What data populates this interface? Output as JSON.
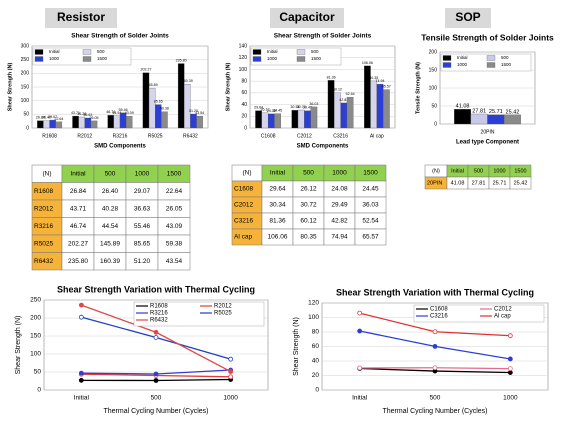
{
  "headers": [
    "Resistor",
    "Capacitor",
    "SOP"
  ],
  "chart_data": [
    {
      "type": "bar",
      "title": "Shear Strength of Solder Joints",
      "ylabel": "Shear Strength (N)",
      "xlabel": "SMD Components",
      "categories": [
        "R1608",
        "R2012",
        "R3216",
        "R5025",
        "R6432"
      ],
      "series": [
        {
          "name": "Initial",
          "color": "#000000",
          "values": [
            26.84,
            43.71,
            46.74,
            202.27,
            235.8
          ],
          "value_labels": [
            "26.84",
            "43.71",
            "46.74",
            "202.27",
            "235.80"
          ]
        },
        {
          "name": "500",
          "color": "#d4d4ec",
          "values": [
            26.4,
            40.28,
            44.54,
            145.89,
            160.39
          ],
          "value_labels": [
            "26.40",
            "40.28",
            "44.54",
            "145.89",
            "160.39"
          ]
        },
        {
          "name": "1000",
          "color": "#2b3fd6",
          "values": [
            29.07,
            36.63,
            55.46,
            85.65,
            51.2
          ],
          "value_labels": [
            "29.07",
            "36.63",
            "55.46",
            "85.65",
            "51.20"
          ]
        },
        {
          "name": "1500",
          "color": "#8a8a8a",
          "values": [
            22.64,
            26.05,
            43.09,
            59.38,
            43.54
          ],
          "value_labels": [
            "22.64",
            "26.05",
            "43.09",
            "59.38",
            "43.54"
          ]
        }
      ],
      "ylim": [
        0,
        300
      ],
      "yticks": [
        0,
        50,
        100,
        150,
        200,
        250,
        300
      ],
      "grid": true,
      "legend": "upper left"
    },
    {
      "type": "bar",
      "title": "Shear Strength of Solder Joints",
      "ylabel": "Shear Strength (N)",
      "xlabel": "SMD Components",
      "categories": [
        "C1608",
        "C2012",
        "C3216",
        "Al cap"
      ],
      "series": [
        {
          "name": "Initial",
          "color": "#000000",
          "values": [
            29.64,
            30.34,
            81.36,
            106.06
          ],
          "value_labels": [
            "29.64",
            "30.34",
            "81.36",
            "106.06"
          ]
        },
        {
          "name": "500",
          "color": "#d4d4ec",
          "values": [
            26.12,
            30.72,
            60.12,
            80.35
          ],
          "value_labels": [
            "26.12",
            "30.72",
            "60.12",
            "80.35"
          ]
        },
        {
          "name": "1000",
          "color": "#2b3fd6",
          "values": [
            24.08,
            29.49,
            42.82,
            74.94
          ],
          "value_labels": [
            "24.08",
            "29.49",
            "42.82",
            "74.94"
          ]
        },
        {
          "name": "1500",
          "color": "#8a8a8a",
          "values": [
            24.45,
            36.03,
            52.54,
            65.57
          ],
          "value_labels": [
            "24.45",
            "36.03",
            "52.54",
            "65.57"
          ]
        }
      ],
      "ylim": [
        0,
        140
      ],
      "yticks": [
        0,
        20,
        40,
        60,
        80,
        100,
        120,
        140
      ],
      "grid": true,
      "legend": "upper left"
    },
    {
      "type": "bar",
      "title": "Tensile Strength of Solder Joints",
      "ylabel": "Tensile Strength (N)",
      "xlabel": "Lead type Component",
      "categories": [
        "20PIN"
      ],
      "series": [
        {
          "name": "Initial",
          "color": "#000000",
          "values": [
            41.08
          ]
        },
        {
          "name": "500",
          "color": "#c8c8ea",
          "values": [
            27.81
          ]
        },
        {
          "name": "1000",
          "color": "#2b3fd6",
          "values": [
            25.71
          ]
        },
        {
          "name": "1500",
          "color": "#8a8a8a",
          "values": [
            25.42
          ]
        }
      ],
      "ylim": [
        0,
        200
      ],
      "yticks": [
        0,
        50,
        100,
        150,
        200
      ],
      "grid": true,
      "legend": "upper left"
    },
    {
      "type": "line",
      "title": "Shear Strength Variation with Thermal Cycling",
      "ylabel": "Shear Strength (N)",
      "xlabel": "Thermal Cycling Number (Cycles)",
      "categories": [
        "Initial",
        "500",
        "1000"
      ],
      "series": [
        {
          "name": "R1608",
          "color": "#000000",
          "values": [
            26.84,
            26.4,
            29.07
          ]
        },
        {
          "name": "R2012",
          "color": "#e03c3c",
          "values": [
            43.71,
            40.28,
            36.63
          ]
        },
        {
          "name": "R3216",
          "color": "#3a3ad0",
          "values": [
            46.74,
            44.54,
            55.46
          ]
        },
        {
          "name": "R5025",
          "color": "#2040c0",
          "values": [
            202.27,
            145.89,
            85.65
          ]
        },
        {
          "name": "R6432",
          "color": "#e04848",
          "values": [
            235.8,
            160.39,
            51.2
          ]
        }
      ],
      "ylim": [
        0,
        250
      ],
      "yticks": [
        0,
        50,
        100,
        150,
        200,
        250
      ],
      "grid": true,
      "legend": "upper right"
    },
    {
      "type": "line",
      "title": "Shear Strength Variation with Thermal Cycling",
      "ylabel": "Shear Strength (N)",
      "xlabel": "Thermal Cycling Number (Cycles)",
      "categories": [
        "Initial",
        "500",
        "1000"
      ],
      "series": [
        {
          "name": "C1608",
          "color": "#000000",
          "values": [
            29.64,
            26.12,
            24.08
          ]
        },
        {
          "name": "C2012",
          "color": "#e86a8a",
          "values": [
            30.34,
            30.72,
            29.49
          ]
        },
        {
          "name": "C3216",
          "color": "#2b3fd6",
          "values": [
            81.36,
            60.12,
            42.82
          ]
        },
        {
          "name": "Al cap",
          "color": "#e03030",
          "values": [
            106.06,
            80.35,
            74.94
          ]
        }
      ],
      "ylim": [
        0,
        120
      ],
      "yticks": [
        0,
        20,
        40,
        60,
        80,
        100,
        120
      ],
      "grid": true,
      "legend": "upper right"
    }
  ],
  "tables": [
    {
      "rows": [
        [
          "(N)",
          "Initial",
          "500",
          "1000",
          "1500"
        ],
        [
          "R1608",
          "26.84",
          "26.40",
          "29.07",
          "22.64"
        ],
        [
          "R2012",
          "43.71",
          "40.28",
          "36.63",
          "26.05"
        ],
        [
          "R3216",
          "46.74",
          "44.54",
          "55.46",
          "43.09"
        ],
        [
          "R5025",
          "202.27",
          "145.89",
          "85.65",
          "59.38"
        ],
        [
          "R6432",
          "235.80",
          "160.39",
          "51.20",
          "43.54"
        ]
      ]
    },
    {
      "rows": [
        [
          "(N)",
          "Initial",
          "500",
          "1000",
          "1500"
        ],
        [
          "C1608",
          "29.64",
          "26.12",
          "24.08",
          "24.45"
        ],
        [
          "C2012",
          "30.34",
          "30.72",
          "29.49",
          "36.03"
        ],
        [
          "C3216",
          "81.36",
          "60.12",
          "42.82",
          "52.54"
        ],
        [
          "Al cap",
          "106.06",
          "80.35",
          "74.94",
          "65.57"
        ]
      ]
    },
    {
      "rows": [
        [
          "(N)",
          "Initial",
          "500",
          "1000",
          "1500"
        ],
        [
          "20PIN",
          "41.08",
          "27.81",
          "25.71",
          "25.42"
        ]
      ]
    }
  ]
}
